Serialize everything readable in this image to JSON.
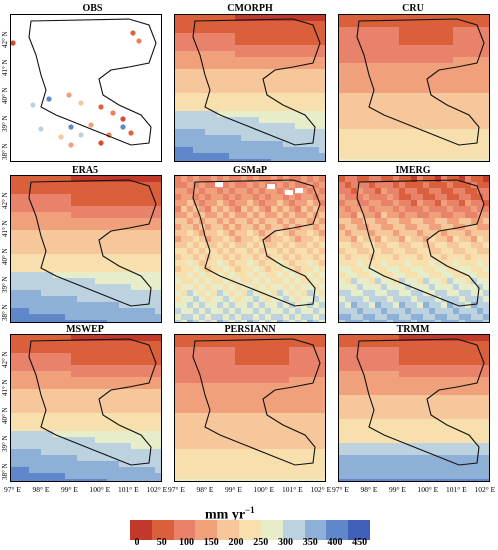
{
  "panels": [
    "OBS",
    "CMORPH",
    "CRU",
    "ERA5",
    "GSMaP",
    "IMERG",
    "MSWEP",
    "PERSIANN",
    "TRMM"
  ],
  "lat_labels": [
    "42° N",
    "41° N",
    "40° N",
    "39° N",
    "38° N"
  ],
  "lon_labels": [
    "97° E",
    "98° E",
    "99° E",
    "100° E",
    "101° E",
    "102° E"
  ],
  "colorbar": {
    "title": "mm yr",
    "title_exp": "−1",
    "ticks": [
      "0",
      "50",
      "100",
      "150",
      "200",
      "250",
      "300",
      "350",
      "400",
      "450"
    ],
    "colors": [
      "#c0392b",
      "#d9603b",
      "#e8826a",
      "#f0a07a",
      "#f6c79a",
      "#f7e0ad",
      "#e7edc8",
      "#bcd3df",
      "#8fb0d6",
      "#5f87c9",
      "#3f61b8"
    ]
  },
  "obs_station_colors": [
    "#e0633d",
    "#e8835a",
    "#d94a2e",
    "#f0a07a",
    "#5f87c9",
    "#bcd3df",
    "#f6c79a"
  ]
}
